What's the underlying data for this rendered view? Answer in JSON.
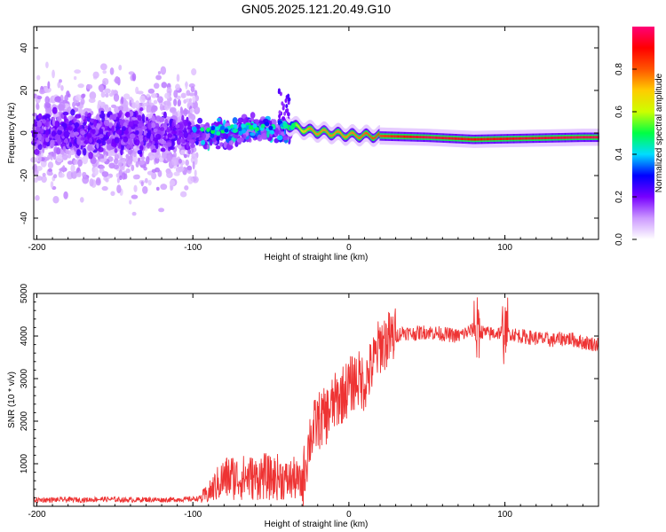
{
  "chart_data": [
    {
      "type": "heatmap",
      "title": "GN05.2025.121.20.49.G10",
      "xlabel": "Height of straight line (km)",
      "ylabel": "Frequency (Hz)",
      "xlim": [
        -202,
        160
      ],
      "ylim": [
        -50,
        50
      ],
      "xticks": [
        -200,
        -100,
        0,
        100
      ],
      "yticks": [
        -40,
        -20,
        0,
        20,
        40
      ],
      "colorbar": {
        "label": "Normalized spectral amplitude",
        "range": [
          0.0,
          1.0
        ],
        "ticks": [
          0.0,
          0.2,
          0.4,
          0.6,
          0.8
        ],
        "tick_labels": [
          "0.0",
          "0.2",
          "0.4",
          "0.6",
          "0.8"
        ],
        "colors": [
          "#ffffff",
          "#cc99ff",
          "#7700ff",
          "#0000ff",
          "#00ddff",
          "#00ff44",
          "#ccff00",
          "#ffcc00",
          "#ff5500",
          "#ff0000",
          "#ff0077"
        ]
      },
      "description_points": [
        {
          "x": -150,
          "y": 0,
          "amp": 0.15
        },
        {
          "x": -60,
          "y": 2,
          "amp": 0.3
        },
        {
          "x": -40,
          "y": 4,
          "amp": 0.45
        },
        {
          "x": -25,
          "y": 1,
          "amp": 0.75
        },
        {
          "x": 0,
          "y": -1,
          "amp": 0.75
        },
        {
          "x": 50,
          "y": -2,
          "amp": 0.95
        },
        {
          "x": 80,
          "y": -3,
          "amp": 0.9
        },
        {
          "x": 150,
          "y": -2,
          "amp": 0.95
        }
      ]
    },
    {
      "type": "line",
      "xlabel": "Height of straight line (km)",
      "ylabel": "SNR (10 * v/v)",
      "xlim": [
        -202,
        160
      ],
      "ylim": [
        0,
        5000
      ],
      "xticks": [
        -200,
        -100,
        0,
        100
      ],
      "yticks": [
        1000,
        2000,
        3000,
        4000,
        5000
      ],
      "color": "#ee3333",
      "series": [
        {
          "name": "SNR",
          "x": [
            -202,
            -190,
            -180,
            -170,
            -160,
            -150,
            -140,
            -130,
            -120,
            -110,
            -100,
            -95,
            -90,
            -85,
            -80,
            -75,
            -70,
            -65,
            -60,
            -55,
            -50,
            -45,
            -40,
            -35,
            -30,
            -25,
            -20,
            -15,
            -10,
            -5,
            0,
            5,
            10,
            15,
            20,
            25,
            30,
            35,
            40,
            50,
            60,
            70,
            80,
            90,
            100,
            110,
            120,
            130,
            140,
            150,
            160
          ],
          "values": [
            150,
            150,
            160,
            150,
            170,
            160,
            150,
            160,
            150,
            160,
            170,
            190,
            300,
            500,
            650,
            700,
            650,
            700,
            650,
            720,
            650,
            700,
            600,
            650,
            500,
            1600,
            2000,
            2100,
            2400,
            2600,
            2800,
            3000,
            2900,
            3300,
            3800,
            3900,
            4000,
            4100,
            4050,
            4100,
            4050,
            4000,
            4150,
            4050,
            4100,
            4000,
            3950,
            3900,
            3950,
            3850,
            3800
          ]
        }
      ]
    }
  ]
}
